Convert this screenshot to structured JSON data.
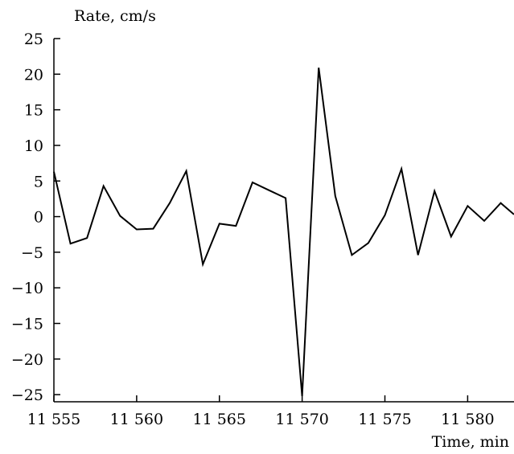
{
  "chart_data": {
    "type": "line",
    "title": "",
    "ylabel": "Rate, cm/s",
    "xlabel": "Time, min",
    "xlim": [
      11555,
      11582.8
    ],
    "ylim": [
      -26,
      25
    ],
    "grid": false,
    "x_ticks": [
      11555,
      11560,
      11565,
      11570,
      11575,
      11580
    ],
    "x_tick_labels": [
      "11 555",
      "11 560",
      "11 565",
      "11 570",
      "11 575",
      "11 580"
    ],
    "y_ticks": [
      25,
      20,
      15,
      10,
      5,
      0,
      -5,
      -10,
      -15,
      -20,
      -25
    ],
    "y_tick_labels": [
      "25",
      "20",
      "15",
      "10",
      "5",
      "0",
      "−5",
      "−10",
      "−15",
      "−20",
      "−25"
    ],
    "series": [
      {
        "color": "#000000",
        "x": [
          11555,
          11556,
          11557,
          11558,
          11559,
          11560,
          11561,
          11562,
          11563,
          11564,
          11565,
          11566,
          11567,
          11568,
          11569,
          11570,
          11571,
          11572,
          11573,
          11574,
          11575,
          11576,
          11577,
          11578,
          11579,
          11580,
          11581,
          11582,
          11582.8
        ],
        "y": [
          6.3,
          -3.8,
          -3.0,
          4.3,
          0.1,
          -1.8,
          -1.7,
          1.9,
          6.4,
          -6.7,
          -1.0,
          -1.3,
          4.8,
          3.7,
          2.6,
          -25.2,
          20.9,
          2.9,
          -5.4,
          -3.7,
          0.2,
          6.7,
          -5.4,
          3.6,
          -2.8,
          1.5,
          -0.6,
          1.9,
          0.3
        ]
      }
    ]
  }
}
